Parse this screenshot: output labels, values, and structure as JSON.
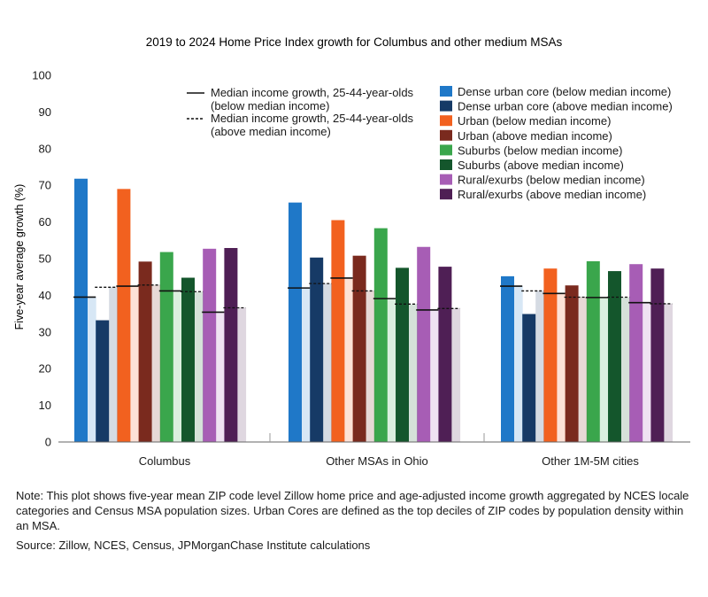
{
  "chart_data": {
    "type": "bar",
    "title": "2019 to 2024 Home Price Index growth for Columbus and other medium MSAs",
    "ylabel": "Five-year average growth (%)",
    "xlabel": "",
    "ylim": [
      0,
      100
    ],
    "yticks": [
      0,
      10,
      20,
      30,
      40,
      50,
      60,
      70,
      80,
      90,
      100
    ],
    "grid": false,
    "groups": [
      "Columbus",
      "Other MSAs in Ohio",
      "Other 1M-5M cities"
    ],
    "series": [
      {
        "name": "Dense urban core (below median income)",
        "color": "#1f78c8",
        "values": [
          71.8,
          65.3,
          45.2
        ],
        "income_growth": [
          39.5,
          42.0,
          42.5
        ]
      },
      {
        "name": "Dense urban core (above median income)",
        "color": "#163a66",
        "values": [
          33.2,
          50.3,
          34.9
        ],
        "income_growth": [
          42.2,
          43.2,
          41.2
        ]
      },
      {
        "name": "Urban (below median income)",
        "color": "#f2611f",
        "values": [
          69.0,
          60.5,
          47.3
        ],
        "income_growth": [
          42.5,
          44.7,
          40.5
        ]
      },
      {
        "name": "Urban (above median income)",
        "color": "#7a2a1e",
        "values": [
          49.2,
          50.8,
          42.7
        ],
        "income_growth": [
          42.8,
          41.2,
          39.5
        ]
      },
      {
        "name": "Suburbs (below median income)",
        "color": "#3aa64c",
        "values": [
          51.8,
          58.3,
          49.3
        ],
        "income_growth": [
          41.2,
          39.1,
          39.4
        ]
      },
      {
        "name": "Suburbs (above median income)",
        "color": "#14562c",
        "values": [
          44.8,
          47.5,
          46.6
        ],
        "income_growth": [
          41.0,
          37.6,
          39.5
        ]
      },
      {
        "name": "Rural/exurbs (below median income)",
        "color": "#a75db5",
        "values": [
          52.7,
          53.2,
          48.5
        ],
        "income_growth": [
          35.4,
          36.0,
          38.0
        ]
      },
      {
        "name": "Rural/exurbs (above median income)",
        "color": "#4f1f55",
        "values": [
          52.9,
          47.8,
          47.3
        ],
        "income_growth": [
          36.6,
          36.4,
          37.7
        ]
      }
    ],
    "line_legend": [
      {
        "label_line1": "Median income growth, 25-44-year-olds",
        "label_line2": "(below median income)",
        "style": "solid"
      },
      {
        "label_line1": "Median income growth, 25-44-year-olds",
        "label_line2": "(above median income)",
        "style": "dashed"
      }
    ],
    "legend_position": "top-right"
  },
  "note": "Note: This plot shows five-year mean ZIP code level Zillow home price and age-adjusted income growth aggregated by NCES locale categories and Census MSA population sizes. Urban Cores are defined as the top deciles of ZIP codes by population density within an MSA.",
  "source": "Source: Zillow, NCES, Census, JPMorganChase Institute calculations"
}
